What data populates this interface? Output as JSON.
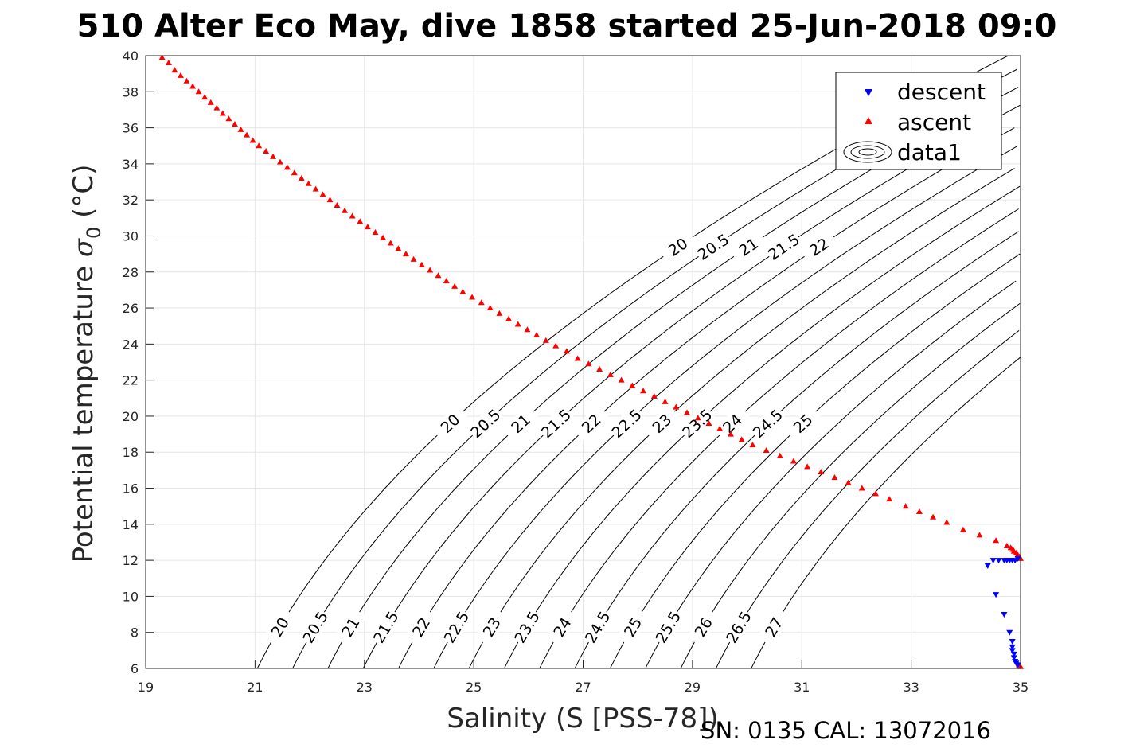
{
  "title": "510 Alter Eco May, dive 1858 started 25-Jun-2018 09:0",
  "xlabel": "Salinity (S [PSS-78])",
  "ylabel_main": "Potential temperature ",
  "ylabel_sigma": "σ",
  "ylabel_sub": "0",
  "ylabel_unit": " (°C)",
  "footer": "SN: 0135  CAL: 13072016",
  "legend": {
    "descent": "descent",
    "ascent": "ascent",
    "data1": "data1"
  },
  "colors": {
    "descent": "#0000ff",
    "ascent": "#ff0000",
    "contour": "#000000",
    "grid": "#e6e6e6"
  },
  "chart_data": {
    "type": "scatter",
    "xlim": [
      19,
      35
    ],
    "ylim": [
      6,
      40
    ],
    "grid": true,
    "legend_position": "top-right",
    "x_ticks": [
      19,
      21,
      23,
      25,
      27,
      29,
      31,
      33,
      35
    ],
    "y_ticks": [
      6,
      8,
      10,
      12,
      14,
      16,
      18,
      20,
      22,
      24,
      26,
      28,
      30,
      32,
      34,
      36,
      38,
      40
    ],
    "series": [
      {
        "name": "descent",
        "marker": "down-triangle",
        "points": [
          [
            34.4,
            11.7
          ],
          [
            34.5,
            12.0
          ],
          [
            34.6,
            12.0
          ],
          [
            34.7,
            12.0
          ],
          [
            34.75,
            12.0
          ],
          [
            34.8,
            12.0
          ],
          [
            34.85,
            12.0
          ],
          [
            34.9,
            12.0
          ],
          [
            34.95,
            12.1
          ],
          [
            34.55,
            10.1
          ],
          [
            34.7,
            9.0
          ],
          [
            34.8,
            8.0
          ],
          [
            34.85,
            7.5
          ],
          [
            34.85,
            7.2
          ],
          [
            34.85,
            7.0
          ],
          [
            34.88,
            6.8
          ],
          [
            34.88,
            6.6
          ],
          [
            34.9,
            6.4
          ],
          [
            34.92,
            6.3
          ],
          [
            34.95,
            6.2
          ]
        ]
      },
      {
        "name": "ascent",
        "marker": "up-triangle",
        "points": [
          [
            19.3,
            39.9
          ],
          [
            19.42,
            39.6
          ],
          [
            19.53,
            39.2
          ],
          [
            19.64,
            38.9
          ],
          [
            19.75,
            38.6
          ],
          [
            19.86,
            38.3
          ],
          [
            19.97,
            38.0
          ],
          [
            20.08,
            37.7
          ],
          [
            20.19,
            37.4
          ],
          [
            20.3,
            37.1
          ],
          [
            20.41,
            36.8
          ],
          [
            20.52,
            36.5
          ],
          [
            20.63,
            36.2
          ],
          [
            20.74,
            35.9
          ],
          [
            20.85,
            35.6
          ],
          [
            20.96,
            35.3
          ],
          [
            21.07,
            35.0
          ],
          [
            21.2,
            34.7
          ],
          [
            21.33,
            34.4
          ],
          [
            21.46,
            34.1
          ],
          [
            21.59,
            33.8
          ],
          [
            21.72,
            33.5
          ],
          [
            21.85,
            33.2
          ],
          [
            21.98,
            32.9
          ],
          [
            22.11,
            32.6
          ],
          [
            22.24,
            32.3
          ],
          [
            22.37,
            32.0
          ],
          [
            22.5,
            31.7
          ],
          [
            22.64,
            31.4
          ],
          [
            22.78,
            31.1
          ],
          [
            22.92,
            30.8
          ],
          [
            23.06,
            30.5
          ],
          [
            23.2,
            30.2
          ],
          [
            23.34,
            29.9
          ],
          [
            23.48,
            29.6
          ],
          [
            23.62,
            29.3
          ],
          [
            23.76,
            29.0
          ],
          [
            23.9,
            28.7
          ],
          [
            24.05,
            28.4
          ],
          [
            24.2,
            28.1
          ],
          [
            24.35,
            27.8
          ],
          [
            24.5,
            27.5
          ],
          [
            24.65,
            27.2
          ],
          [
            24.8,
            26.9
          ],
          [
            24.97,
            26.6
          ],
          [
            25.14,
            26.3
          ],
          [
            25.3,
            26.0
          ],
          [
            25.47,
            25.7
          ],
          [
            25.64,
            25.4
          ],
          [
            25.81,
            25.1
          ],
          [
            25.98,
            24.8
          ],
          [
            26.15,
            24.5
          ],
          [
            26.32,
            24.2
          ],
          [
            26.5,
            23.9
          ],
          [
            26.7,
            23.6
          ],
          [
            26.9,
            23.2
          ],
          [
            27.1,
            22.9
          ],
          [
            27.3,
            22.6
          ],
          [
            27.5,
            22.3
          ],
          [
            27.7,
            22.0
          ],
          [
            27.9,
            21.7
          ],
          [
            28.1,
            21.4
          ],
          [
            28.3,
            21.1
          ],
          [
            28.5,
            20.8
          ],
          [
            28.7,
            20.5
          ],
          [
            28.9,
            20.2
          ],
          [
            29.1,
            19.9
          ],
          [
            29.3,
            19.6
          ],
          [
            29.5,
            19.3
          ],
          [
            29.7,
            19.0
          ],
          [
            29.9,
            18.7
          ],
          [
            30.1,
            18.4
          ],
          [
            30.35,
            18.1
          ],
          [
            30.6,
            17.8
          ],
          [
            30.85,
            17.5
          ],
          [
            31.1,
            17.2
          ],
          [
            31.35,
            16.9
          ],
          [
            31.6,
            16.6
          ],
          [
            31.85,
            16.3
          ],
          [
            32.1,
            16.0
          ],
          [
            32.35,
            15.7
          ],
          [
            32.6,
            15.4
          ],
          [
            32.9,
            15.0
          ],
          [
            33.15,
            14.7
          ],
          [
            33.4,
            14.4
          ],
          [
            33.65,
            14.1
          ],
          [
            33.95,
            13.7
          ],
          [
            34.25,
            13.4
          ],
          [
            34.55,
            13.1
          ],
          [
            34.75,
            12.8
          ],
          [
            34.82,
            12.7
          ],
          [
            34.86,
            12.6
          ],
          [
            34.88,
            12.5
          ],
          [
            34.92,
            12.4
          ],
          [
            34.95,
            12.3
          ],
          [
            34.98,
            12.2
          ],
          [
            35.0,
            12.1
          ],
          [
            34.97,
            6.2
          ],
          [
            35.0,
            6.1
          ]
        ]
      }
    ],
    "contour_levels": [
      20,
      20.5,
      21,
      21.5,
      22,
      22.5,
      23,
      23.5,
      24,
      24.5,
      25,
      25.5,
      26,
      26.5,
      27
    ],
    "contour_label_values_top": [
      "20",
      "20.5",
      "21",
      "21.5",
      "22"
    ],
    "contour_label_values_mid": [
      "20",
      "20.5",
      "21",
      "21.5",
      "22",
      "22.5",
      "23",
      "23.5",
      "24",
      "24.5",
      "25"
    ],
    "contour_label_values_bottom": [
      "20",
      "20.5",
      "21",
      "21.5",
      "22",
      "22.5",
      "23",
      "23.5",
      "24",
      "24.5",
      "25",
      "25.5",
      "26",
      "26.5",
      "27"
    ]
  }
}
